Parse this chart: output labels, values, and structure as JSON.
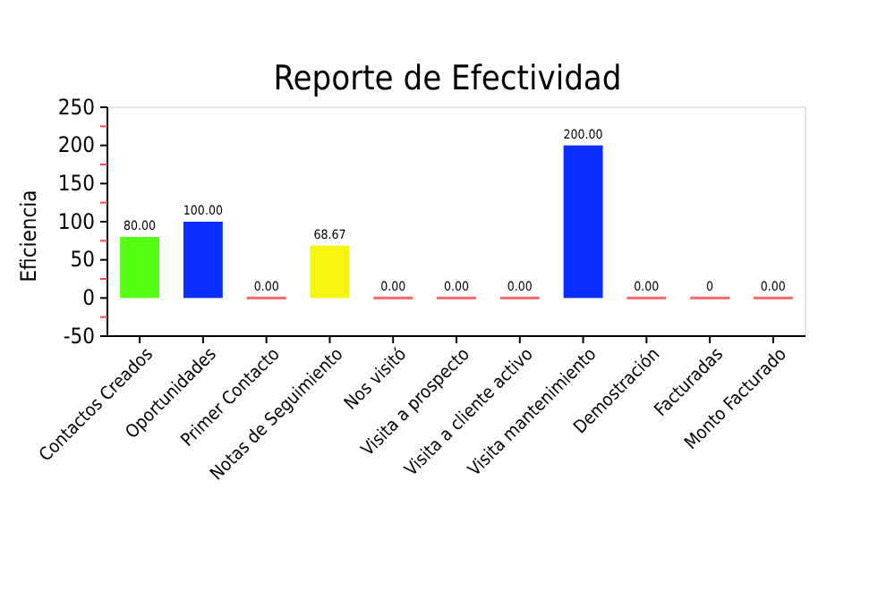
{
  "chart_data": {
    "type": "bar",
    "title": "Reporte de Efectividad",
    "ylabel": "Eficiencia",
    "categories": [
      "Contactos Creados",
      "Oportunidades",
      "Primer Contacto",
      "Notas de Seguimiento",
      "Nos visitó",
      "Visita a prospecto",
      "Visita a cliente activo",
      "Visita mantenimiento",
      "Demostración",
      "Facturadas",
      "Monto Facturado"
    ],
    "values": [
      80,
      100,
      0,
      68.67,
      0,
      0,
      0,
      200,
      0,
      0,
      0
    ],
    "value_labels": [
      "80.00",
      "100.00",
      "0.00",
      "68.67",
      "0.00",
      "0.00",
      "0.00",
      "200.00",
      "0.00",
      "0",
      "0.00"
    ],
    "colors": [
      "#55ff11",
      "#0a2eff",
      "#ff6666",
      "#f5f50f",
      "#ff6666",
      "#ff6666",
      "#ff6666",
      "#0a2eff",
      "#ff6666",
      "#ff6666",
      "#ff6666"
    ],
    "ylim": [
      -50,
      250
    ],
    "yticks": [
      -50,
      {
        "value": -25,
        "label": null
      },
      0,
      {
        "value": 25,
        "label": null
      },
      50,
      {
        "value": 75,
        "label": null
      },
      100,
      {
        "value": 125,
        "label": null
      },
      150,
      {
        "value": 175,
        "label": null
      },
      200,
      {
        "value": 225,
        "label": null
      },
      250
    ]
  }
}
